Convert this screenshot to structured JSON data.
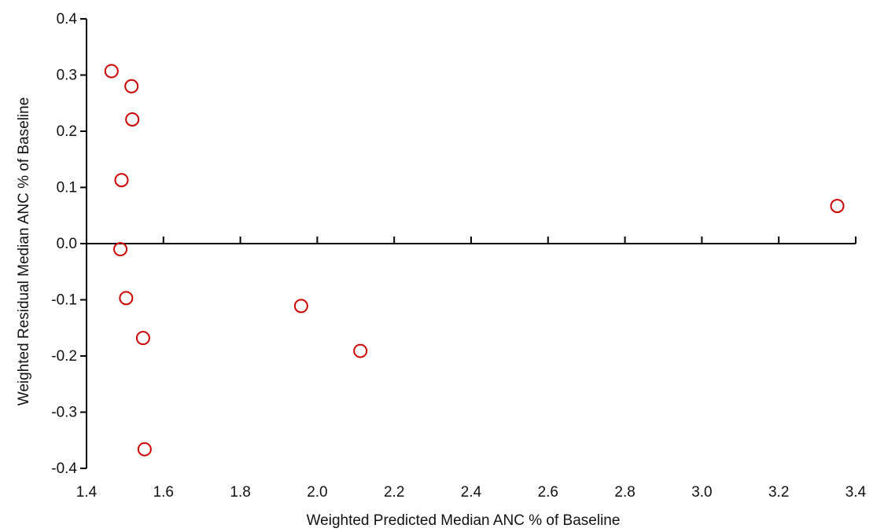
{
  "chart_data": {
    "type": "scatter",
    "title": "",
    "xlabel": "Weighted Predicted Median ANC % of Baseline",
    "ylabel": "Weighted Residual Median ANC % of Baseline",
    "xlim": [
      1.4,
      3.4
    ],
    "ylim": [
      -0.4,
      0.4
    ],
    "x_ticks": [
      "1.4",
      "1.6",
      "1.8",
      "2.0",
      "2.2",
      "2.4",
      "2.6",
      "2.8",
      "3.0",
      "3.2",
      "3.4"
    ],
    "y_ticks": [
      "0.4",
      "0.3",
      "0.2",
      "0.1",
      "0.0",
      "-0.1",
      "-0.2",
      "-0.3",
      "-0.4"
    ],
    "grid": false,
    "legend": "none",
    "marker": "open-circle",
    "point_color": "#cc0000",
    "points": [
      {
        "x": 1.465,
        "y": 0.307
      },
      {
        "x": 1.517,
        "y": 0.28
      },
      {
        "x": 1.519,
        "y": 0.221
      },
      {
        "x": 1.491,
        "y": 0.113
      },
      {
        "x": 1.488,
        "y": -0.01
      },
      {
        "x": 1.503,
        "y": -0.097
      },
      {
        "x": 1.547,
        "y": -0.168
      },
      {
        "x": 1.551,
        "y": -0.366
      },
      {
        "x": 1.958,
        "y": -0.111
      },
      {
        "x": 2.112,
        "y": -0.191
      },
      {
        "x": 3.352,
        "y": 0.067
      }
    ]
  }
}
